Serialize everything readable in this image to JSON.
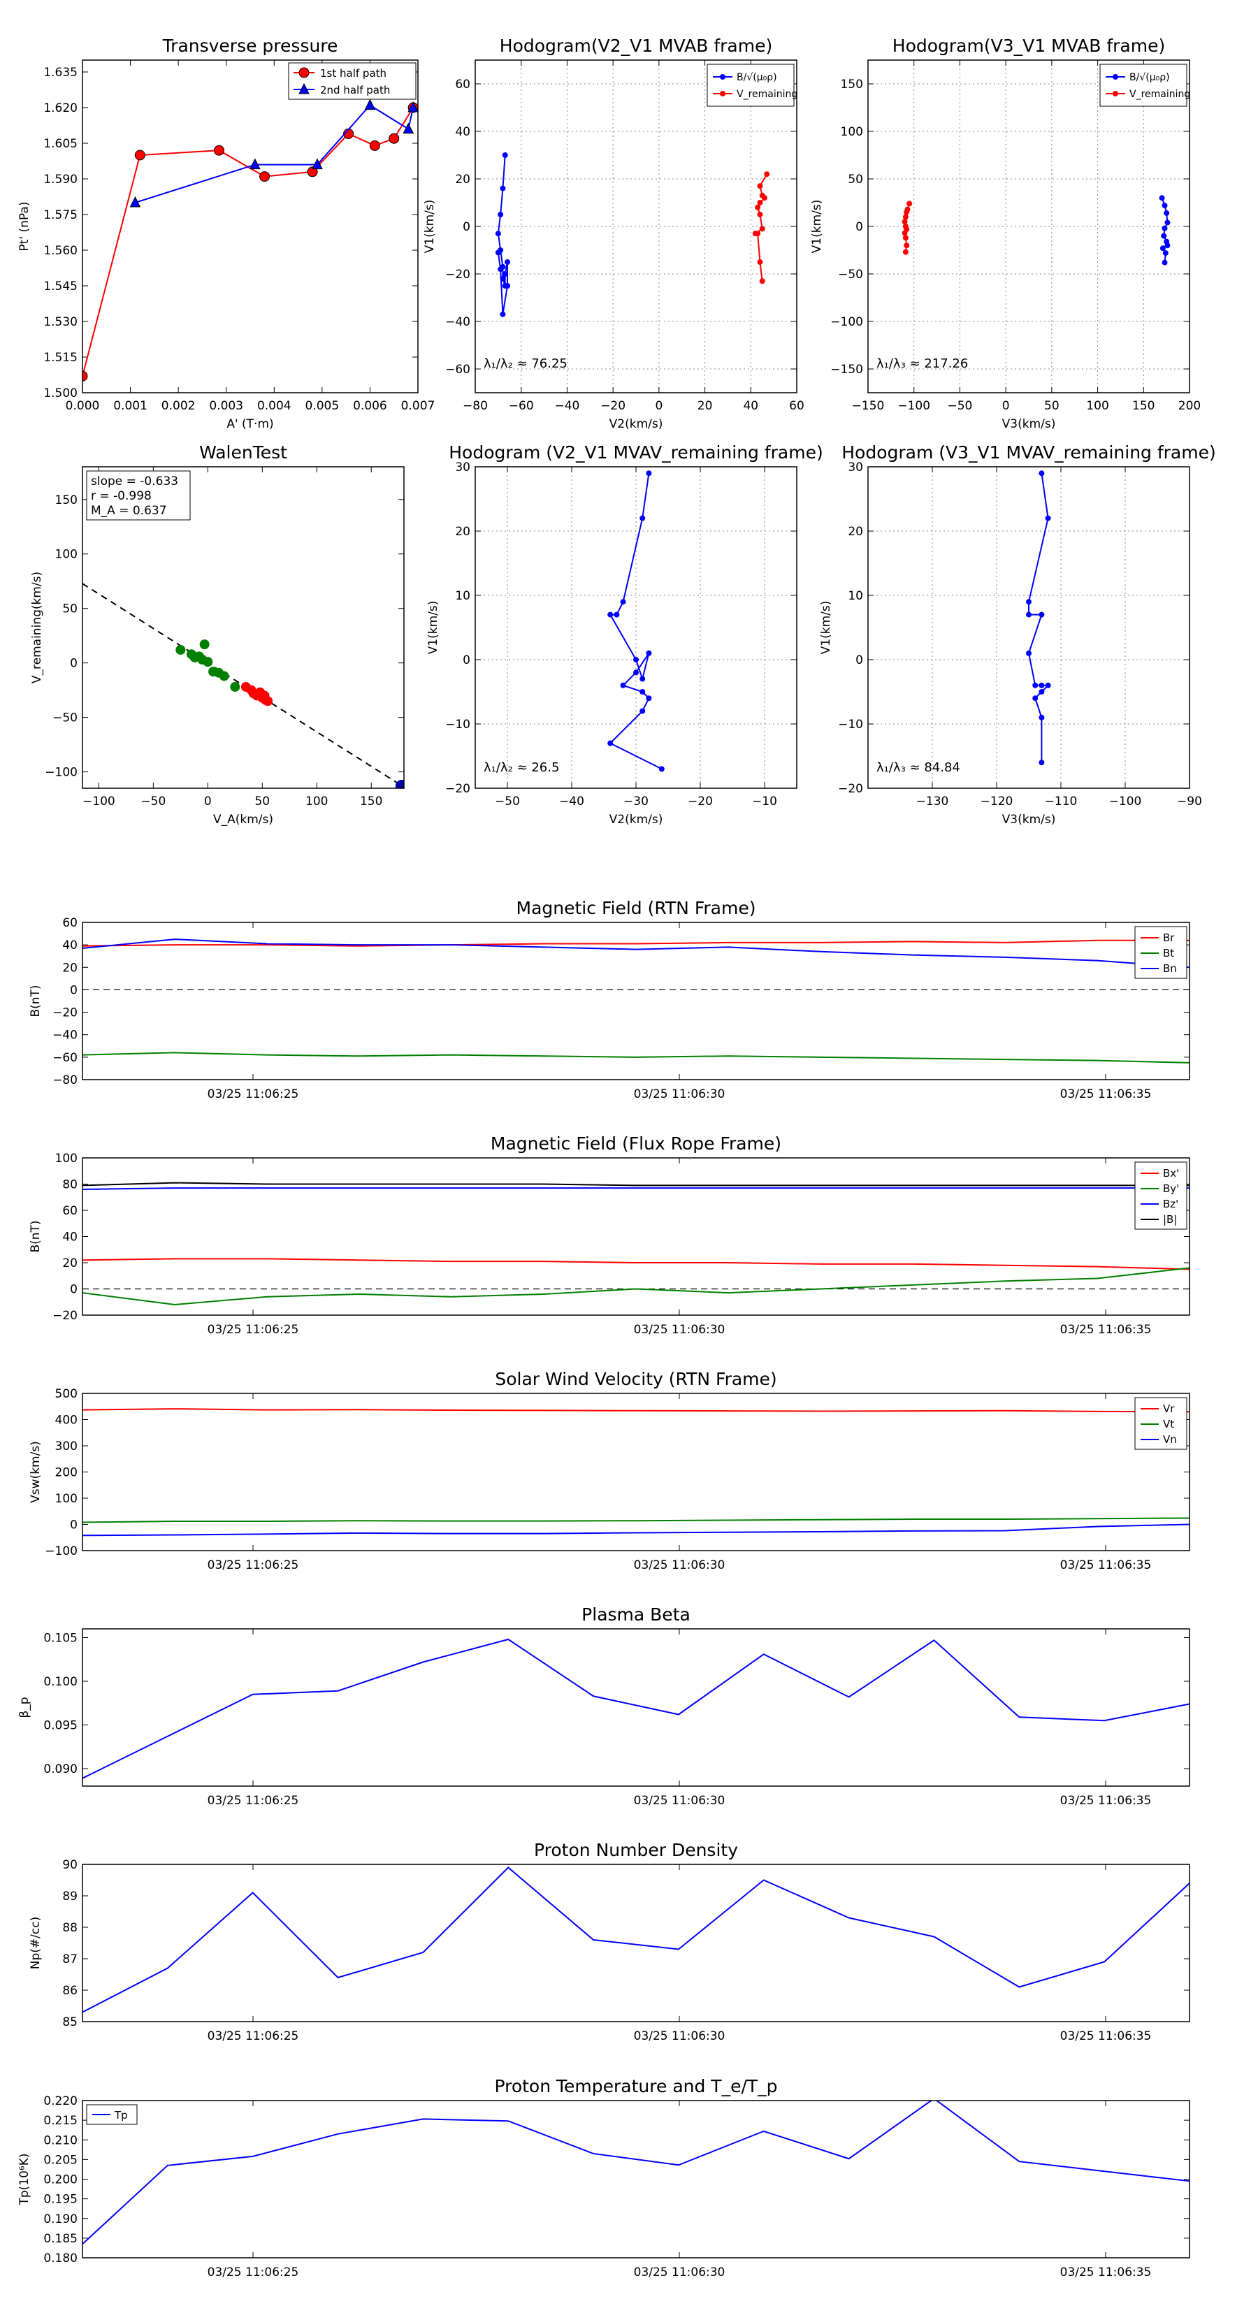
{
  "figure": {
    "background": "#ffffff"
  },
  "colors": {
    "red": "#ff0000",
    "blue": "#0000ff",
    "green": "#008000",
    "black": "#000000",
    "grid": "#999999"
  },
  "time_ticks": [
    "03/25 11:06:25",
    "03/25 11:06:30",
    "03/25 11:06:35"
  ],
  "chart_data": [
    {
      "id": "pt",
      "type": "line",
      "title": "Transverse pressure",
      "xlabel": "A' (T·m)",
      "ylabel": "Pt' (nPa)",
      "xlim": [
        0,
        0.007
      ],
      "ylim": [
        1.5,
        1.64
      ],
      "xticks": [
        0,
        0.001,
        0.002,
        0.003,
        0.004,
        0.005,
        0.006,
        0.007
      ],
      "xtick_labels": [
        "0.000",
        "0.001",
        "0.002",
        "0.003",
        "0.004",
        "0.005",
        "0.006",
        "0.007"
      ],
      "yticks": [
        1.5,
        1.515,
        1.53,
        1.545,
        1.56,
        1.575,
        1.59,
        1.605,
        1.62,
        1.635
      ],
      "ytick_labels": [
        "1.500",
        "1.515",
        "1.530",
        "1.545",
        "1.560",
        "1.575",
        "1.590",
        "1.605",
        "1.620",
        "1.635"
      ],
      "grid": false,
      "legend": [
        "1st half path",
        "2nd half path"
      ],
      "series": [
        {
          "name": "1st half path",
          "color": "#ff0000",
          "marker": "circle",
          "x": [
            0.0,
            0.0012,
            0.00285,
            0.0038,
            0.0048,
            0.00555,
            0.0061,
            0.0065,
            0.0069
          ],
          "y": [
            1.507,
            1.6,
            1.602,
            1.591,
            1.593,
            1.609,
            1.604,
            1.607,
            1.62
          ]
        },
        {
          "name": "2nd half path",
          "color": "#0000ff",
          "marker": "triangle",
          "x": [
            0.0011,
            0.0036,
            0.0049,
            0.006,
            0.0068,
            0.0069
          ],
          "y": [
            1.58,
            1.596,
            1.596,
            1.621,
            1.611,
            1.62
          ]
        }
      ]
    },
    {
      "id": "h1",
      "type": "scatter",
      "title": "Hodogram(V2_V1 MVAB frame)",
      "xlabel": "V2(km/s)",
      "ylabel": "V1(km/s)",
      "xlim": [
        -80,
        60
      ],
      "ylim": [
        -70,
        70
      ],
      "xticks": [
        -80,
        -60,
        -40,
        -20,
        0,
        20,
        40,
        60
      ],
      "xtick_labels": [
        "−80",
        "−60",
        "−40",
        "−20",
        "0",
        "20",
        "40",
        "60"
      ],
      "yticks": [
        -60,
        -40,
        -20,
        0,
        20,
        40,
        60
      ],
      "ytick_labels": [
        "−60",
        "−40",
        "−20",
        "0",
        "20",
        "40",
        "60"
      ],
      "grid": true,
      "legend": [
        "B/√(μ₀ρ)",
        "V_remaining"
      ],
      "annotation": "λ₁/λ₂ ≈ 76.25",
      "series": [
        {
          "name": "B",
          "color": "#0000ff",
          "x": [
            -67,
            -68,
            -69,
            -70,
            -69,
            -68,
            -68,
            -67,
            -67,
            -66,
            -66,
            -68,
            -69,
            -70
          ],
          "y": [
            30,
            16,
            5,
            -3,
            -10,
            -17,
            -22,
            -25,
            -20,
            -15,
            -25,
            -37,
            -18,
            -11
          ]
        },
        {
          "name": "V",
          "color": "#ff0000",
          "x": [
            47,
            44,
            45,
            46,
            44,
            43,
            44,
            45,
            42,
            43,
            44,
            45
          ],
          "y": [
            22,
            17,
            13,
            12,
            10,
            8,
            5,
            -1,
            -3,
            -3,
            -15,
            -23
          ]
        }
      ]
    },
    {
      "id": "h2",
      "type": "scatter",
      "title": "Hodogram(V3_V1 MVAB frame)",
      "xlabel": "V3(km/s)",
      "ylabel": "V1(km/s)",
      "xlim": [
        -150,
        200
      ],
      "ylim": [
        -175,
        175
      ],
      "xticks": [
        -150,
        -100,
        -50,
        0,
        50,
        100,
        150,
        200
      ],
      "xtick_labels": [
        "−150",
        "−100",
        "−50",
        "0",
        "50",
        "100",
        "150",
        "200"
      ],
      "yticks": [
        -150,
        -100,
        -50,
        0,
        50,
        100,
        150
      ],
      "ytick_labels": [
        "−150",
        "−100",
        "−50",
        "0",
        "50",
        "100",
        "150"
      ],
      "grid": true,
      "legend": [
        "B/√(μ₀ρ)",
        "V_remaining"
      ],
      "annotation": "λ₁/λ₃ ≈ 217.26",
      "series": [
        {
          "name": "B",
          "color": "#0000ff",
          "x": [
            170,
            173,
            175,
            176,
            173,
            172,
            175,
            176,
            171,
            174,
            173
          ],
          "y": [
            30,
            22,
            14,
            4,
            -2,
            -10,
            -16,
            -20,
            -23,
            -28,
            -38
          ]
        },
        {
          "name": "V",
          "color": "#ff0000",
          "x": [
            -105,
            -107,
            -108,
            -109,
            -110,
            -109,
            -108,
            -110,
            -109,
            -108,
            -109
          ],
          "y": [
            24,
            18,
            15,
            10,
            5,
            0,
            -3,
            -7,
            -12,
            -20,
            -27
          ]
        }
      ]
    },
    {
      "id": "walen",
      "type": "scatter",
      "title": "WalenTest",
      "xlabel": "V_A(km/s)",
      "ylabel": "V_remaining(km/s)",
      "xlim": [
        -115,
        180
      ],
      "ylim": [
        -115,
        180
      ],
      "xticks": [
        -100,
        -50,
        0,
        50,
        100,
        150
      ],
      "xtick_labels": [
        "−100",
        "−50",
        "0",
        "50",
        "100",
        "150"
      ],
      "yticks": [
        -100,
        -50,
        0,
        50,
        100,
        150
      ],
      "ytick_labels": [
        "−100",
        "−50",
        "0",
        "50",
        "100",
        "150"
      ],
      "grid": false,
      "stats": [
        "slope = -0.633",
        "r = -0.998",
        "M_A = 0.637"
      ],
      "fit_line": {
        "slope": -0.633,
        "intercept": 0
      },
      "series": [
        {
          "name": "green",
          "color": "#008000",
          "x": [
            -25,
            -15,
            -12,
            -8,
            -5,
            0,
            5,
            10,
            15,
            25,
            -3
          ],
          "y": [
            12,
            8,
            5,
            6,
            3,
            1,
            -8,
            -9,
            -12,
            -22,
            17
          ]
        },
        {
          "name": "red",
          "color": "#ff0000",
          "x": [
            35,
            40,
            42,
            45,
            48,
            50,
            52,
            55,
            53
          ],
          "y": [
            -22,
            -25,
            -28,
            -30,
            -27,
            -32,
            -30,
            -35,
            -34
          ]
        },
        {
          "name": "end",
          "color": "#0000aa",
          "x": [
            178
          ],
          "y": [
            -113
          ]
        }
      ]
    },
    {
      "id": "h3",
      "type": "line",
      "title": "Hodogram (V2_V1 MVAV_remaining frame)",
      "xlabel": "V2(km/s)",
      "ylabel": "V1(km/s)",
      "xlim": [
        -55,
        -5
      ],
      "ylim": [
        -20,
        30
      ],
      "xticks": [
        -50,
        -40,
        -30,
        -20,
        -10
      ],
      "xtick_labels": [
        "−50",
        "−40",
        "−30",
        "−20",
        "−10"
      ],
      "yticks": [
        -20,
        -10,
        0,
        10,
        20,
        30
      ],
      "ytick_labels": [
        "−20",
        "−10",
        "0",
        "10",
        "20",
        "30"
      ],
      "grid": true,
      "annotation": "λ₁/λ₂ ≈ 26.5",
      "series": [
        {
          "name": "V",
          "color": "#0000ff",
          "x": [
            -28,
            -29,
            -32,
            -33,
            -34,
            -30,
            -29,
            -28,
            -30,
            -32,
            -29,
            -28,
            -29,
            -34,
            -26
          ],
          "y": [
            29,
            22,
            9,
            7,
            7,
            0,
            -3,
            1,
            -2,
            -4,
            -5,
            -6,
            -8,
            -13,
            -17
          ]
        }
      ]
    },
    {
      "id": "h4",
      "type": "line",
      "title": "Hodogram (V3_V1 MVAV_remaining frame)",
      "xlabel": "V3(km/s)",
      "ylabel": "V1(km/s)",
      "xlim": [
        -140,
        -90
      ],
      "ylim": [
        -20,
        30
      ],
      "xticks": [
        -130,
        -120,
        -110,
        -100,
        -90
      ],
      "xtick_labels": [
        "−130",
        "−120",
        "−110",
        "−100",
        "−90"
      ],
      "yticks": [
        -20,
        -10,
        0,
        10,
        20,
        30
      ],
      "ytick_labels": [
        "−20",
        "−10",
        "0",
        "10",
        "20",
        "30"
      ],
      "grid": true,
      "annotation": "λ₁/λ₃ ≈ 84.84",
      "series": [
        {
          "name": "V",
          "color": "#0000ff",
          "x": [
            -113,
            -112,
            -115,
            -115,
            -113,
            -115,
            -114,
            -113,
            -112,
            -113,
            -114,
            -113,
            -113
          ],
          "y": [
            29,
            22,
            9,
            7,
            7,
            1,
            -4,
            -4,
            -4,
            -5,
            -6,
            -9,
            -16
          ]
        }
      ]
    },
    {
      "id": "brtn",
      "type": "line",
      "title": "Magnetic Field (RTN Frame)",
      "ylabel": "B(nT)",
      "ylim": [
        -80,
        60
      ],
      "yticks": [
        -80,
        -60,
        -40,
        -20,
        0,
        20,
        40,
        60
      ],
      "ytick_labels": [
        "−80",
        "−60",
        "−40",
        "−20",
        "0",
        "20",
        "40",
        "60"
      ],
      "zero_line": true,
      "legend": [
        "Br",
        "Bt",
        "Bn"
      ],
      "series": [
        {
          "name": "Br",
          "color": "#ff0000",
          "values": [
            39,
            40,
            40,
            39,
            40,
            41,
            41,
            42,
            42,
            43,
            42,
            44,
            44
          ]
        },
        {
          "name": "Bt",
          "color": "#008000",
          "values": [
            -58,
            -56,
            -58,
            -59,
            -58,
            -59,
            -60,
            -59,
            -60,
            -61,
            -62,
            -63,
            -65
          ]
        },
        {
          "name": "Bn",
          "color": "#0000ff",
          "values": [
            37,
            45,
            41,
            40,
            40,
            38,
            36,
            38,
            34,
            31,
            29,
            26,
            20
          ]
        }
      ]
    },
    {
      "id": "bfr",
      "type": "line",
      "title": "Magnetic Field (Flux Rope Frame)",
      "ylabel": "B(nT)",
      "ylim": [
        -20,
        100
      ],
      "yticks": [
        -20,
        0,
        20,
        40,
        60,
        80,
        100
      ],
      "ytick_labels": [
        "−20",
        "0",
        "20",
        "40",
        "60",
        "80",
        "100"
      ],
      "zero_line": true,
      "legend": [
        "Bx'",
        "By'",
        "Bz'",
        "|B|"
      ],
      "series": [
        {
          "name": "Bx'",
          "color": "#ff0000",
          "values": [
            22,
            23,
            23,
            22,
            21,
            21,
            20,
            20,
            19,
            19,
            18,
            17,
            15
          ]
        },
        {
          "name": "By'",
          "color": "#008000",
          "values": [
            -3,
            -12,
            -6,
            -4,
            -6,
            -4,
            0,
            -3,
            0,
            3,
            6,
            8,
            16
          ]
        },
        {
          "name": "Bz'",
          "color": "#0000ff",
          "values": [
            76,
            77,
            77,
            77,
            77,
            77,
            77,
            77,
            77,
            77,
            77,
            77,
            77
          ]
        },
        {
          "name": "|B|",
          "color": "#000000",
          "values": [
            79,
            81,
            80,
            80,
            80,
            80,
            79,
            79,
            79,
            79,
            79,
            79,
            79
          ]
        }
      ]
    },
    {
      "id": "vsw",
      "type": "line",
      "title": "Solar Wind Velocity (RTN Frame)",
      "ylabel": "Vsw(km/s)",
      "ylim": [
        -100,
        500
      ],
      "yticks": [
        -100,
        0,
        100,
        200,
        300,
        400,
        500
      ],
      "ytick_labels": [
        "−100",
        "0",
        "100",
        "200",
        "300",
        "400",
        "500"
      ],
      "legend": [
        "Vr",
        "Vt",
        "Vn"
      ],
      "series": [
        {
          "name": "Vr",
          "color": "#ff0000",
          "values": [
            437,
            441,
            437,
            438,
            436,
            435,
            434,
            433,
            432,
            433,
            434,
            431,
            430
          ]
        },
        {
          "name": "Vt",
          "color": "#008000",
          "values": [
            8,
            12,
            12,
            14,
            13,
            13,
            14,
            16,
            18,
            20,
            20,
            22,
            24
          ]
        },
        {
          "name": "Vn",
          "color": "#0000ff",
          "values": [
            -42,
            -40,
            -37,
            -33,
            -35,
            -35,
            -32,
            -30,
            -28,
            -25,
            -24,
            -8,
            0
          ]
        }
      ]
    },
    {
      "id": "beta",
      "type": "line",
      "title": "Plasma Beta",
      "ylabel": "β_p",
      "ylim": [
        0.088,
        0.106
      ],
      "yticks": [
        0.09,
        0.095,
        0.1,
        0.105
      ],
      "ytick_labels": [
        "0.090",
        "0.095",
        "0.100",
        "0.105"
      ],
      "series": [
        {
          "name": "beta",
          "color": "#0000ff",
          "values": [
            0.0889,
            0.0937,
            0.0985,
            0.0989,
            0.1022,
            0.1048,
            0.0983,
            0.0962,
            0.1031,
            0.0982,
            0.1047,
            0.0959,
            0.0955,
            0.0974
          ]
        }
      ]
    },
    {
      "id": "np",
      "type": "line",
      "title": "Proton Number Density",
      "ylabel": "Np(#/cc)",
      "ylim": [
        85,
        90
      ],
      "yticks": [
        85,
        86,
        87,
        88,
        89,
        90
      ],
      "ytick_labels": [
        "85",
        "86",
        "87",
        "88",
        "89",
        "90"
      ],
      "series": [
        {
          "name": "Np",
          "color": "#0000ff",
          "values": [
            85.3,
            86.7,
            89.1,
            86.4,
            87.2,
            89.9,
            87.6,
            87.3,
            89.5,
            88.3,
            87.7,
            86.1,
            86.9,
            89.4
          ]
        }
      ]
    },
    {
      "id": "tp",
      "type": "line",
      "title": "Proton Temperature and T_e/T_p",
      "ylabel": "Tp(10⁶K)",
      "ylim": [
        0.18,
        0.22
      ],
      "yticks": [
        0.18,
        0.185,
        0.19,
        0.195,
        0.2,
        0.205,
        0.21,
        0.215,
        0.22
      ],
      "ytick_labels": [
        "0.180",
        "0.185",
        "0.190",
        "0.195",
        "0.200",
        "0.205",
        "0.210",
        "0.215",
        "0.220"
      ],
      "legend": [
        "Tp"
      ],
      "series": [
        {
          "name": "Tp",
          "color": "#0000ff",
          "values": [
            0.1835,
            0.2035,
            0.2058,
            0.2115,
            0.2153,
            0.2148,
            0.2065,
            0.2036,
            0.2122,
            0.2052,
            0.2205,
            0.2045,
            0.202,
            0.1995
          ]
        }
      ]
    }
  ]
}
